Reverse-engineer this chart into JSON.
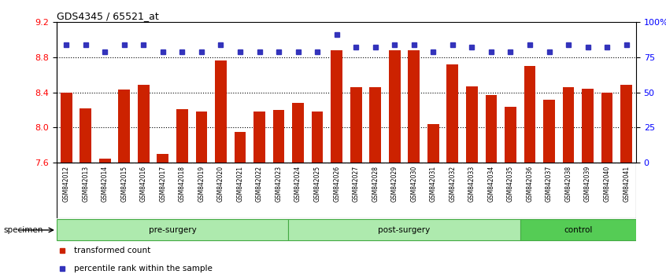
{
  "title": "GDS4345 / 65521_at",
  "samples": [
    "GSM842012",
    "GSM842013",
    "GSM842014",
    "GSM842015",
    "GSM842016",
    "GSM842017",
    "GSM842018",
    "GSM842019",
    "GSM842020",
    "GSM842021",
    "GSM842022",
    "GSM842023",
    "GSM842024",
    "GSM842025",
    "GSM842026",
    "GSM842027",
    "GSM842028",
    "GSM842029",
    "GSM842030",
    "GSM842031",
    "GSM842032",
    "GSM842033",
    "GSM842034",
    "GSM842035",
    "GSM842036",
    "GSM842037",
    "GSM842038",
    "GSM842039",
    "GSM842040",
    "GSM842041"
  ],
  "bar_values": [
    8.4,
    8.22,
    7.65,
    8.43,
    8.49,
    7.7,
    8.21,
    8.18,
    8.76,
    7.95,
    8.18,
    8.2,
    8.28,
    8.18,
    8.88,
    8.46,
    8.46,
    8.88,
    8.88,
    8.04,
    8.72,
    8.47,
    8.37,
    8.24,
    8.7,
    8.32,
    8.46,
    8.44,
    8.4,
    8.49
  ],
  "percentile_values": [
    84,
    84,
    79,
    84,
    84,
    79,
    79,
    79,
    84,
    79,
    79,
    79,
    79,
    79,
    91,
    82,
    82,
    84,
    84,
    79,
    84,
    82,
    79,
    79,
    84,
    79,
    84,
    82,
    82,
    84
  ],
  "bar_color": "#cc2200",
  "dot_color": "#3333bb",
  "ylim_left": [
    7.6,
    9.2
  ],
  "ylim_right": [
    0,
    100
  ],
  "yticks_left": [
    7.6,
    8.0,
    8.4,
    8.8,
    9.2
  ],
  "yticks_right": [
    0,
    25,
    50,
    75,
    100
  ],
  "ytick_labels_right": [
    "0",
    "25",
    "50",
    "75",
    "100%"
  ],
  "grid_values": [
    8.0,
    8.4,
    8.8
  ],
  "group_labels": [
    "pre-surgery",
    "post-surgery",
    "control"
  ],
  "group_starts": [
    0,
    12,
    24
  ],
  "group_ends": [
    12,
    24,
    30
  ],
  "group_color_light": "#aeeaae",
  "group_color_dark": "#55cc55",
  "tick_bg_color": "#cccccc",
  "background_color": "#ffffff"
}
